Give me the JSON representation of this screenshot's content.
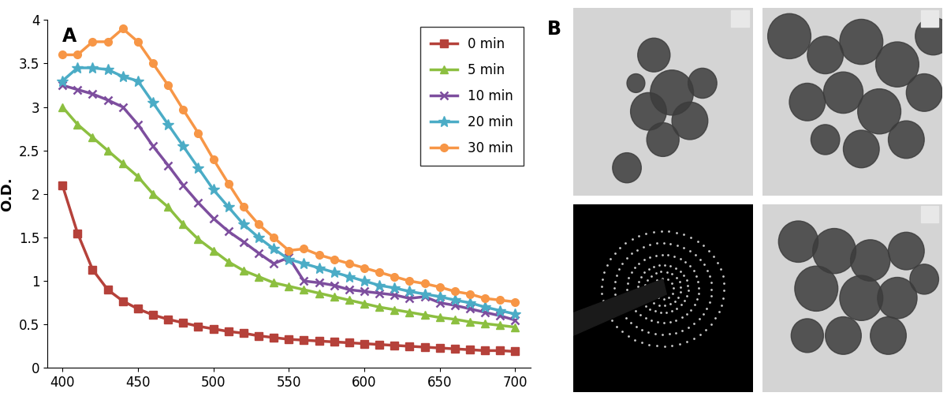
{
  "chart_data": {
    "type": "line",
    "panel_label": "A",
    "y_label": "O.D.",
    "x": [
      400,
      410,
      420,
      430,
      440,
      450,
      460,
      470,
      480,
      490,
      500,
      510,
      520,
      530,
      540,
      550,
      560,
      570,
      580,
      590,
      600,
      610,
      620,
      630,
      640,
      650,
      660,
      670,
      680,
      690,
      700
    ],
    "series": [
      {
        "name": "0 min",
        "color": "#b5413a",
        "marker": "square",
        "values": [
          2.1,
          1.55,
          1.13,
          0.9,
          0.77,
          0.68,
          0.61,
          0.56,
          0.52,
          0.48,
          0.45,
          0.42,
          0.4,
          0.37,
          0.35,
          0.33,
          0.32,
          0.31,
          0.3,
          0.29,
          0.28,
          0.27,
          0.26,
          0.25,
          0.24,
          0.23,
          0.22,
          0.21,
          0.2,
          0.2,
          0.19
        ]
      },
      {
        "name": "5 min",
        "color": "#8cbf40",
        "marker": "triangle",
        "values": [
          3.0,
          2.8,
          2.65,
          2.5,
          2.35,
          2.2,
          2.0,
          1.85,
          1.65,
          1.48,
          1.35,
          1.22,
          1.12,
          1.05,
          0.98,
          0.94,
          0.9,
          0.86,
          0.82,
          0.78,
          0.74,
          0.7,
          0.67,
          0.64,
          0.61,
          0.58,
          0.56,
          0.53,
          0.51,
          0.49,
          0.47
        ]
      },
      {
        "name": "10 min",
        "color": "#7d4e9e",
        "marker": "x",
        "values": [
          3.25,
          3.2,
          3.15,
          3.08,
          3.0,
          2.8,
          2.55,
          2.33,
          2.1,
          1.9,
          1.72,
          1.57,
          1.45,
          1.32,
          1.2,
          1.27,
          1.0,
          0.98,
          0.95,
          0.9,
          0.88,
          0.86,
          0.84,
          0.8,
          0.82,
          0.75,
          0.72,
          0.68,
          0.64,
          0.6,
          0.55
        ]
      },
      {
        "name": "20 min",
        "color": "#4bacc6",
        "marker": "star",
        "values": [
          3.3,
          3.45,
          3.45,
          3.43,
          3.35,
          3.3,
          3.05,
          2.8,
          2.55,
          2.3,
          2.05,
          1.85,
          1.65,
          1.5,
          1.37,
          1.25,
          1.2,
          1.15,
          1.1,
          1.05,
          1.0,
          0.95,
          0.92,
          0.88,
          0.85,
          0.82,
          0.78,
          0.75,
          0.7,
          0.66,
          0.62
        ]
      },
      {
        "name": "30 min",
        "color": "#f79646",
        "marker": "circle",
        "values": [
          3.6,
          3.6,
          3.75,
          3.75,
          3.9,
          3.75,
          3.5,
          3.25,
          2.97,
          2.7,
          2.4,
          2.12,
          1.85,
          1.65,
          1.5,
          1.35,
          1.37,
          1.3,
          1.25,
          1.2,
          1.15,
          1.1,
          1.05,
          1.0,
          0.97,
          0.93,
          0.88,
          0.85,
          0.8,
          0.78,
          0.76
        ]
      }
    ],
    "xlim": [
      390,
      710
    ],
    "xticks": [
      400,
      450,
      500,
      550,
      600,
      650,
      700
    ],
    "ylim": [
      0,
      4
    ],
    "yticks": [
      0,
      0.5,
      1,
      1.5,
      2,
      2.5,
      3,
      3.5,
      4
    ],
    "grid": false,
    "legend": "upper right"
  },
  "image_panel": {
    "panel_label": "B"
  }
}
